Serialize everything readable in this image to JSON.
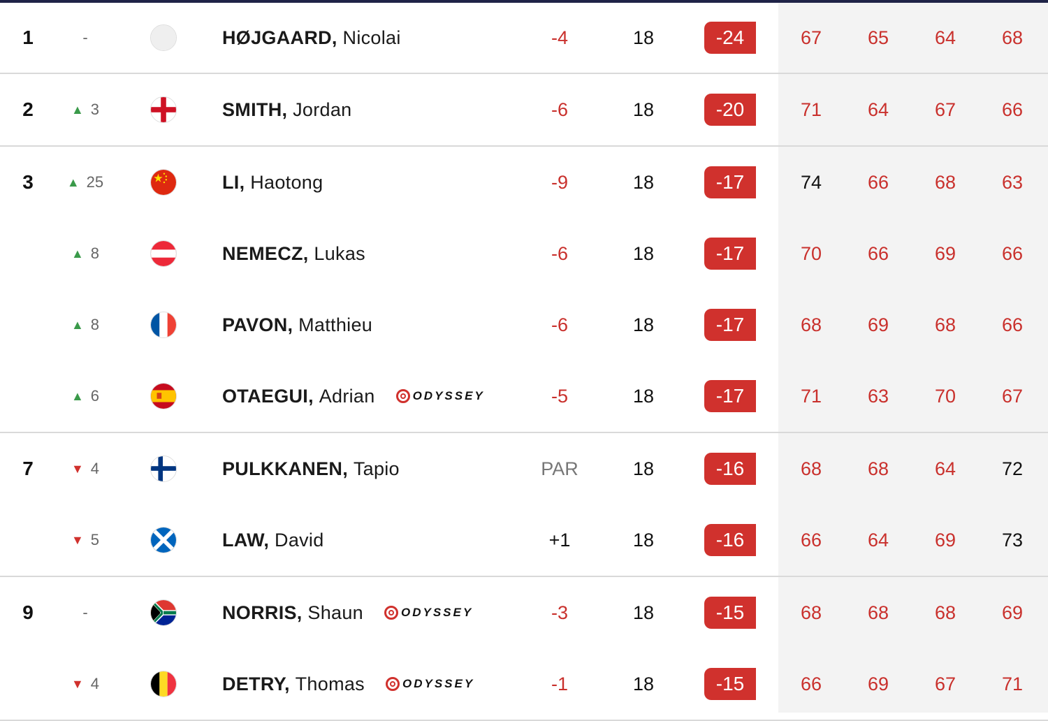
{
  "colors": {
    "accent_red": "#d0312d",
    "under_par_text": "#c9302c",
    "up_arrow": "#3a9a4a",
    "down_arrow": "#d0312d",
    "top_bar": "#1f2347"
  },
  "players": [
    {
      "pos": "1",
      "move_dir": "none",
      "move_text": "-",
      "flag": "blank",
      "last": "HØJGAARD,",
      "first": "Nicolai",
      "sponsor": "",
      "today": "-4",
      "thru": "18",
      "total": "-24",
      "rounds": [
        "67",
        "65",
        "64",
        "68"
      ]
    },
    {
      "pos": "2",
      "move_dir": "up",
      "move_text": "3",
      "flag": "england",
      "last": "SMITH,",
      "first": "Jordan",
      "sponsor": "",
      "today": "-6",
      "thru": "18",
      "total": "-20",
      "rounds": [
        "71",
        "64",
        "67",
        "66"
      ]
    },
    {
      "pos": "3",
      "move_dir": "up",
      "move_text": "25",
      "flag": "china",
      "last": "LI,",
      "first": "Haotong",
      "sponsor": "",
      "today": "-9",
      "thru": "18",
      "total": "-17",
      "rounds": [
        "74",
        "66",
        "68",
        "63"
      ]
    },
    {
      "pos": "",
      "move_dir": "up",
      "move_text": "8",
      "flag": "austria",
      "last": "NEMECZ,",
      "first": "Lukas",
      "sponsor": "",
      "today": "-6",
      "thru": "18",
      "total": "-17",
      "rounds": [
        "70",
        "66",
        "69",
        "66"
      ]
    },
    {
      "pos": "",
      "move_dir": "up",
      "move_text": "8",
      "flag": "france",
      "last": "PAVON,",
      "first": "Matthieu",
      "sponsor": "",
      "today": "-6",
      "thru": "18",
      "total": "-17",
      "rounds": [
        "68",
        "69",
        "68",
        "66"
      ]
    },
    {
      "pos": "",
      "move_dir": "up",
      "move_text": "6",
      "flag": "spain",
      "last": "OTAEGUI,",
      "first": "Adrian",
      "sponsor": "ODYSSEY",
      "today": "-5",
      "thru": "18",
      "total": "-17",
      "rounds": [
        "71",
        "63",
        "70",
        "67"
      ]
    },
    {
      "pos": "7",
      "move_dir": "down",
      "move_text": "4",
      "flag": "finland",
      "last": "PULKKANEN,",
      "first": "Tapio",
      "sponsor": "",
      "today": "PAR",
      "thru": "18",
      "total": "-16",
      "rounds": [
        "68",
        "68",
        "64",
        "72"
      ]
    },
    {
      "pos": "",
      "move_dir": "down",
      "move_text": "5",
      "flag": "scotland",
      "last": "LAW,",
      "first": "David",
      "sponsor": "",
      "today": "+1",
      "thru": "18",
      "total": "-16",
      "rounds": [
        "66",
        "64",
        "69",
        "73"
      ]
    },
    {
      "pos": "9",
      "move_dir": "none",
      "move_text": "-",
      "flag": "south-africa",
      "last": "NORRIS,",
      "first": "Shaun",
      "sponsor": "ODYSSEY",
      "today": "-3",
      "thru": "18",
      "total": "-15",
      "rounds": [
        "68",
        "68",
        "68",
        "69"
      ]
    },
    {
      "pos": "",
      "move_dir": "down",
      "move_text": "4",
      "flag": "belgium",
      "last": "DETRY,",
      "first": "Thomas",
      "sponsor": "ODYSSEY",
      "today": "-1",
      "thru": "18",
      "total": "-15",
      "rounds": [
        "66",
        "69",
        "67",
        "71"
      ]
    }
  ]
}
